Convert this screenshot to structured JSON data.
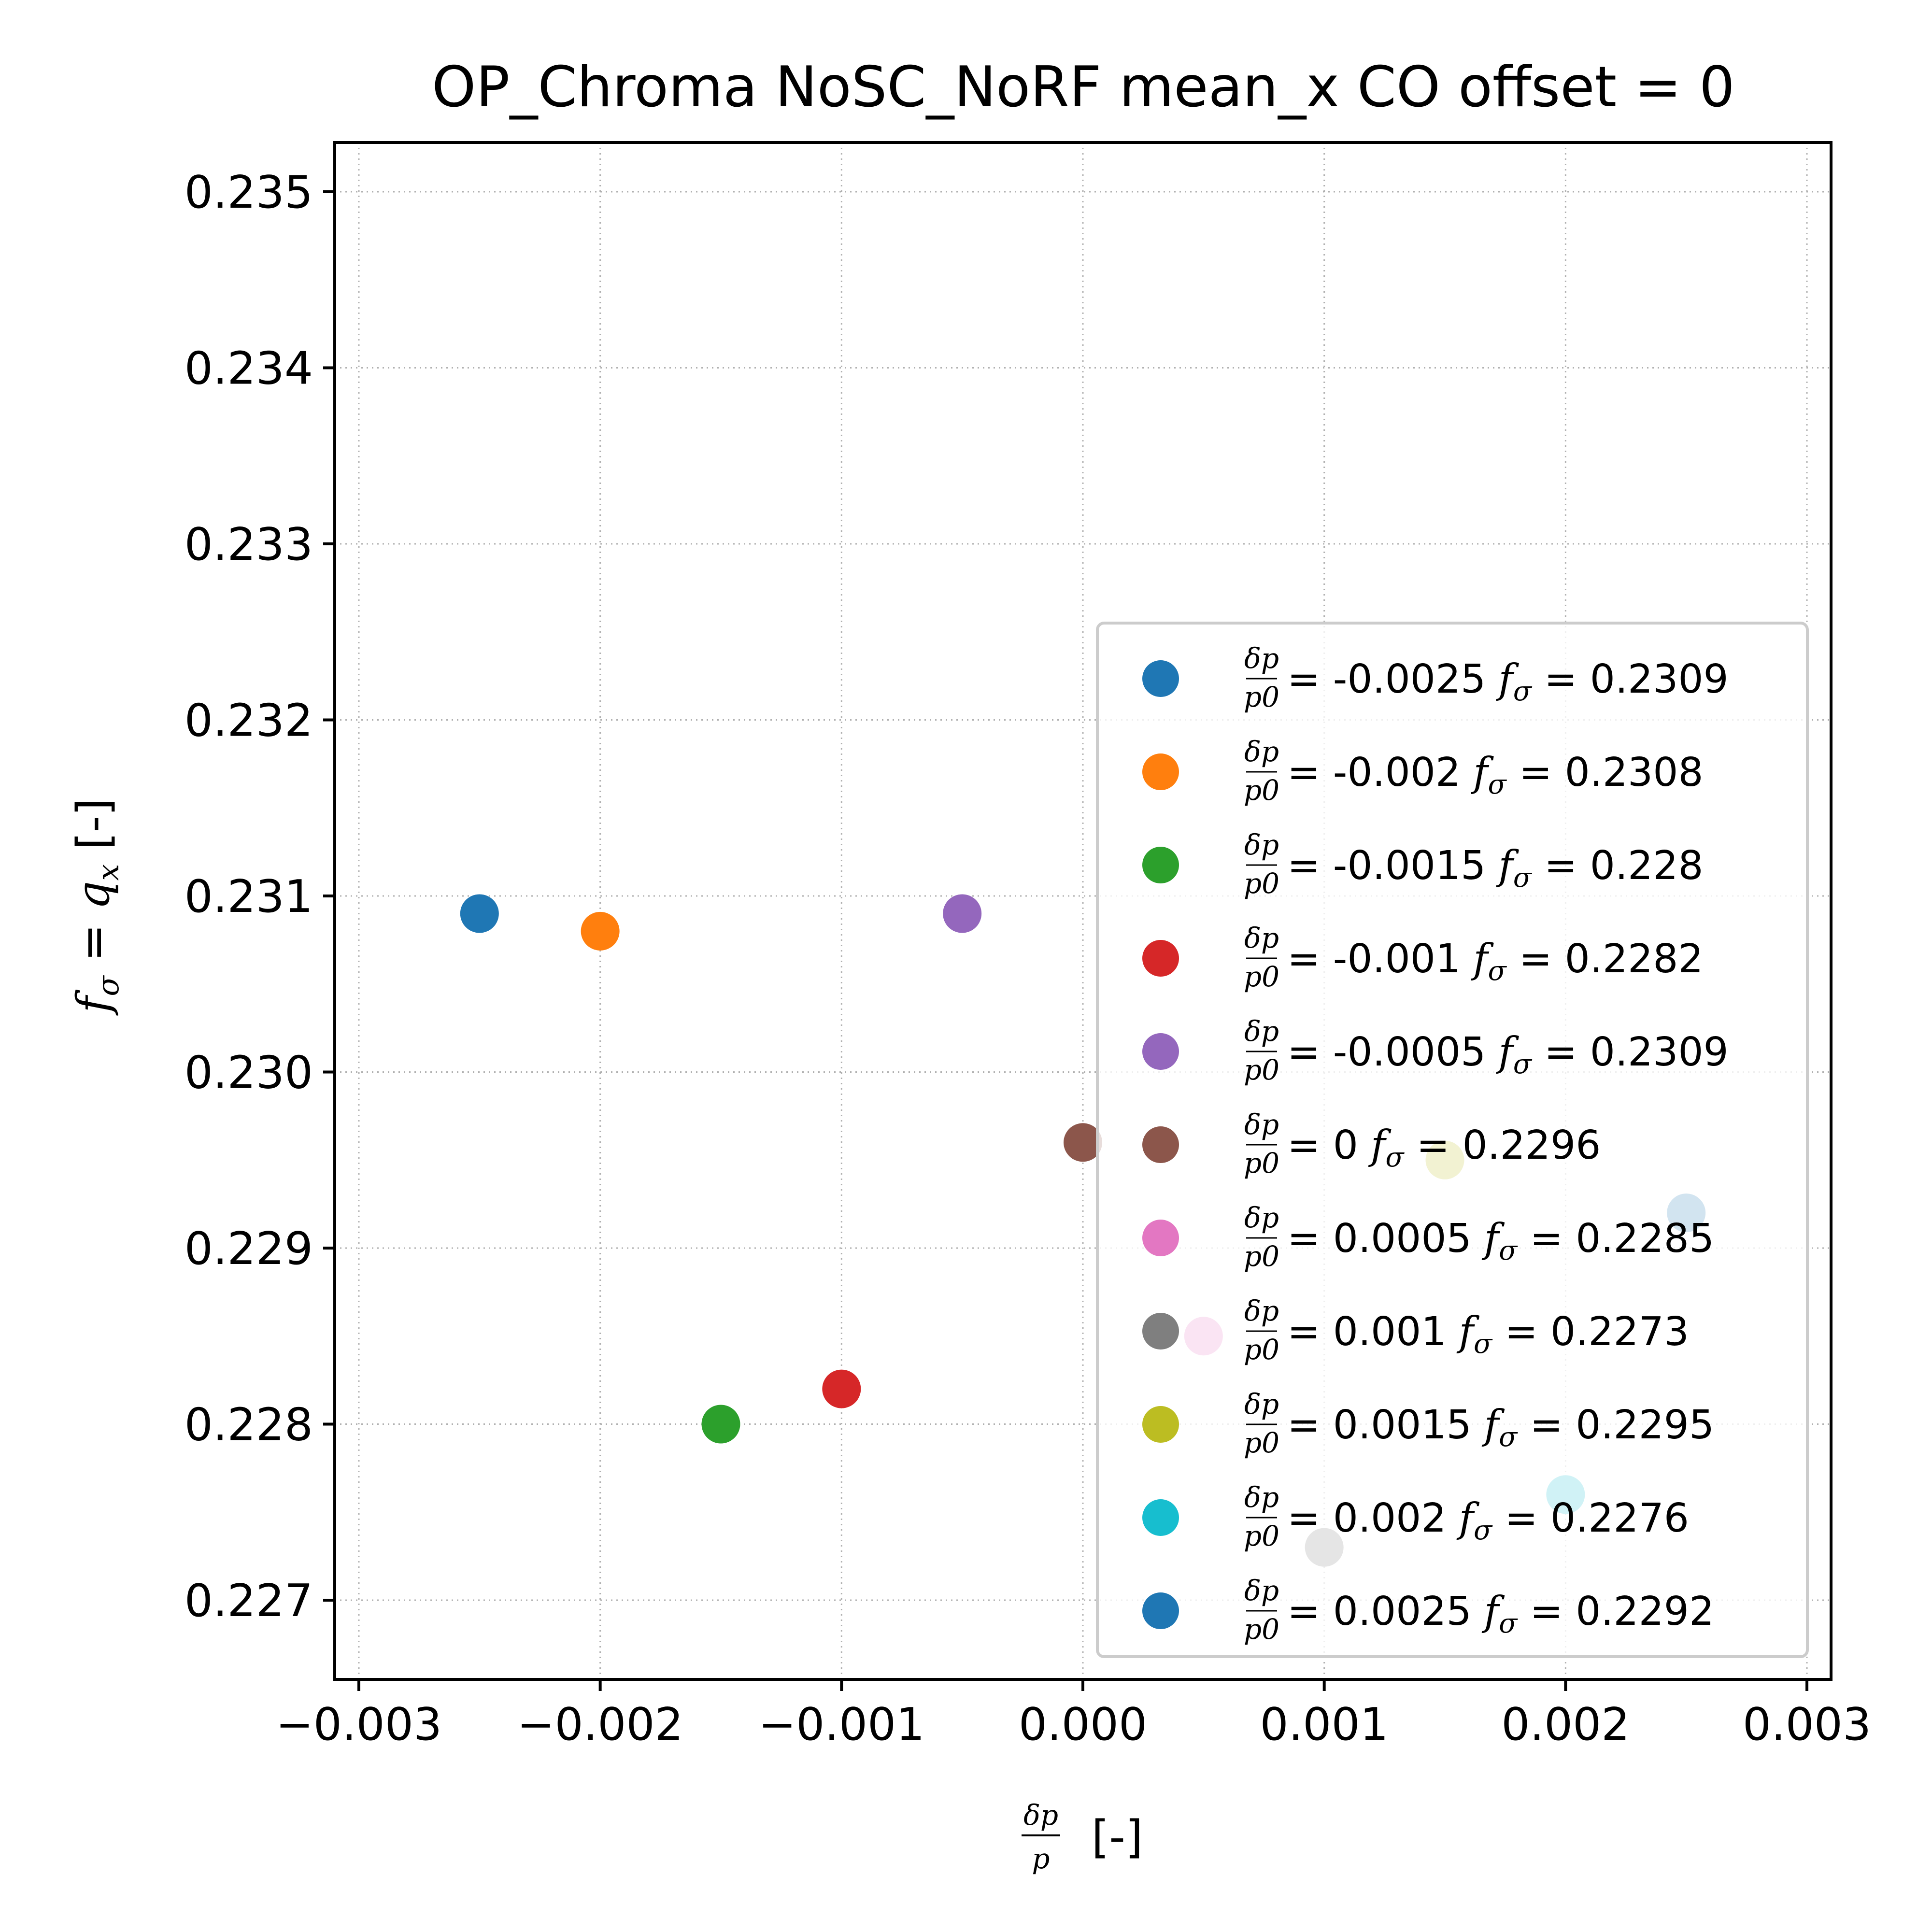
{
  "chart_data": {
    "type": "scatter",
    "title": "OP_Chroma NoSC_NoRF mean_x CO offset = 0",
    "xlabel": "δp/p [-]",
    "ylabel": "f_σ = q_x [-]",
    "xlim": [
      -0.0031,
      0.0031
    ],
    "ylim": [
      0.22655,
      0.23528
    ],
    "xticks": [
      -0.003,
      -0.002,
      -0.001,
      0.0,
      0.001,
      0.002,
      0.003
    ],
    "xtick_labels": [
      "−0.003",
      "−0.002",
      "−0.001",
      "0.000",
      "0.001",
      "0.002",
      "0.003"
    ],
    "yticks": [
      0.227,
      0.228,
      0.229,
      0.23,
      0.231,
      0.232,
      0.233,
      0.234,
      0.235
    ],
    "ytick_labels": [
      "0.227",
      "0.228",
      "0.229",
      "0.230",
      "0.231",
      "0.232",
      "0.233",
      "0.234",
      "0.235"
    ],
    "grid": true,
    "legend_position": "lower-right",
    "series": [
      {
        "name": "δp/p0 = -0.0025 fσ = 0.2309",
        "dp_label": "-0.0025",
        "f_label": "0.2309",
        "color": "#1f77b4",
        "x": -0.0025,
        "y": 0.2309
      },
      {
        "name": "δp/p0 = -0.002 fσ = 0.2308",
        "dp_label": "-0.002",
        "f_label": "0.2308",
        "color": "#ff7f0e",
        "x": -0.002,
        "y": 0.2308
      },
      {
        "name": "δp/p0 = -0.0015 fσ = 0.228",
        "dp_label": "-0.0015",
        "f_label": "0.228",
        "color": "#2ca02c",
        "x": -0.0015,
        "y": 0.228
      },
      {
        "name": "δp/p0 = -0.001 fσ = 0.2282",
        "dp_label": "-0.001",
        "f_label": "0.2282",
        "color": "#d62728",
        "x": -0.001,
        "y": 0.2282
      },
      {
        "name": "δp/p0 = -0.0005 fσ = 0.2309",
        "dp_label": "-0.0005",
        "f_label": "0.2309",
        "color": "#9467bd",
        "x": -0.0005,
        "y": 0.2309
      },
      {
        "name": "δp/p0 = 0 fσ = 0.2296",
        "dp_label": "0",
        "f_label": "0.2296",
        "color": "#8c564b",
        "x": 0.0,
        "y": 0.2296
      },
      {
        "name": "δp/p0 = 0.0005 fσ = 0.2285",
        "dp_label": "0.0005",
        "f_label": "0.2285",
        "color": "#e377c2",
        "x": 0.0005,
        "y": 0.2285
      },
      {
        "name": "δp/p0 = 0.001 fσ = 0.2273",
        "dp_label": "0.001",
        "f_label": "0.2273",
        "color": "#7f7f7f",
        "x": 0.001,
        "y": 0.2273
      },
      {
        "name": "δp/p0 = 0.0015 fσ = 0.2295",
        "dp_label": "0.0015",
        "f_label": "0.2295",
        "color": "#bcbd22",
        "x": 0.0015,
        "y": 0.2295
      },
      {
        "name": "δp/p0 = 0.002 fσ = 0.2276",
        "dp_label": "0.002",
        "f_label": "0.2276",
        "color": "#17becf",
        "x": 0.002,
        "y": 0.2276
      },
      {
        "name": "δp/p0 = 0.0025 fσ = 0.2292",
        "dp_label": "0.0025",
        "f_label": "0.2292",
        "color": "#1f77b4",
        "x": 0.0025,
        "y": 0.2292
      }
    ]
  }
}
